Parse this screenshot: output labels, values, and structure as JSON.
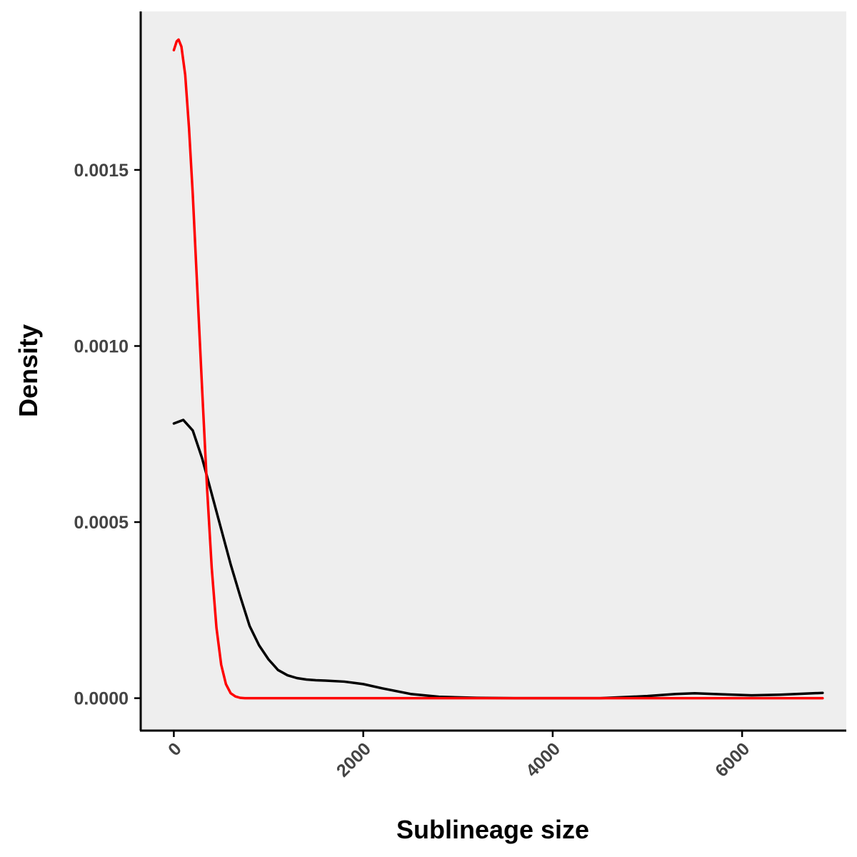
{
  "chart_data": {
    "type": "line",
    "title": "",
    "xlabel": "Sublineage size",
    "ylabel": "Density",
    "xlim": [
      -350,
      7100
    ],
    "ylim": [
      -9e-05,
      0.00195
    ],
    "x_ticks": [
      0,
      2000,
      4000,
      6000
    ],
    "x_tick_labels": [
      "0",
      "2000",
      "4000",
      "6000"
    ],
    "y_ticks": [
      0,
      0.0005,
      0.001,
      0.0015
    ],
    "y_tick_labels": [
      "0.0000",
      "0.0005",
      "0.0010",
      "0.0015"
    ],
    "grid": false,
    "panel_background": "#eeeeee",
    "legend": "none",
    "series": [
      {
        "color": "#000000",
        "x": [
          0,
          100,
          200,
          300,
          400,
          500,
          600,
          700,
          800,
          900,
          1000,
          1100,
          1200,
          1300,
          1400,
          1500,
          1600,
          1800,
          2000,
          2200,
          2500,
          2800,
          3200,
          3600,
          4000,
          4500,
          5000,
          5300,
          5500,
          5800,
          6100,
          6400,
          6850
        ],
        "y": [
          0.00078,
          0.00079,
          0.00076,
          0.00068,
          0.00058,
          0.00048,
          0.00038,
          0.00029,
          0.000205,
          0.00015,
          0.00011,
          8e-05,
          6.5e-05,
          5.7e-05,
          5.3e-05,
          5.1e-05,
          5e-05,
          4.7e-05,
          4e-05,
          2.8e-05,
          1.2e-05,
          4e-06,
          1e-06,
          0.0,
          0.0,
          0.0,
          6e-06,
          1.2e-05,
          1.4e-05,
          1.1e-05,
          8e-06,
          1e-05,
          1.5e-05
        ]
      },
      {
        "color": "#ff0000",
        "x": [
          0,
          30,
          50,
          80,
          120,
          160,
          200,
          250,
          300,
          350,
          400,
          450,
          500,
          550,
          600,
          650,
          700,
          750,
          800,
          900,
          1000,
          1200,
          2000,
          4000,
          6000,
          6850
        ],
        "y": [
          0.00184,
          0.001865,
          0.00187,
          0.00185,
          0.00177,
          0.00162,
          0.00143,
          0.00115,
          0.00087,
          0.0006,
          0.00037,
          0.0002,
          9.5e-05,
          4e-05,
          1.4e-05,
          5e-06,
          1e-06,
          0.0,
          0.0,
          0.0,
          0.0,
          0.0,
          0.0,
          0.0,
          0.0,
          0.0
        ]
      }
    ]
  }
}
